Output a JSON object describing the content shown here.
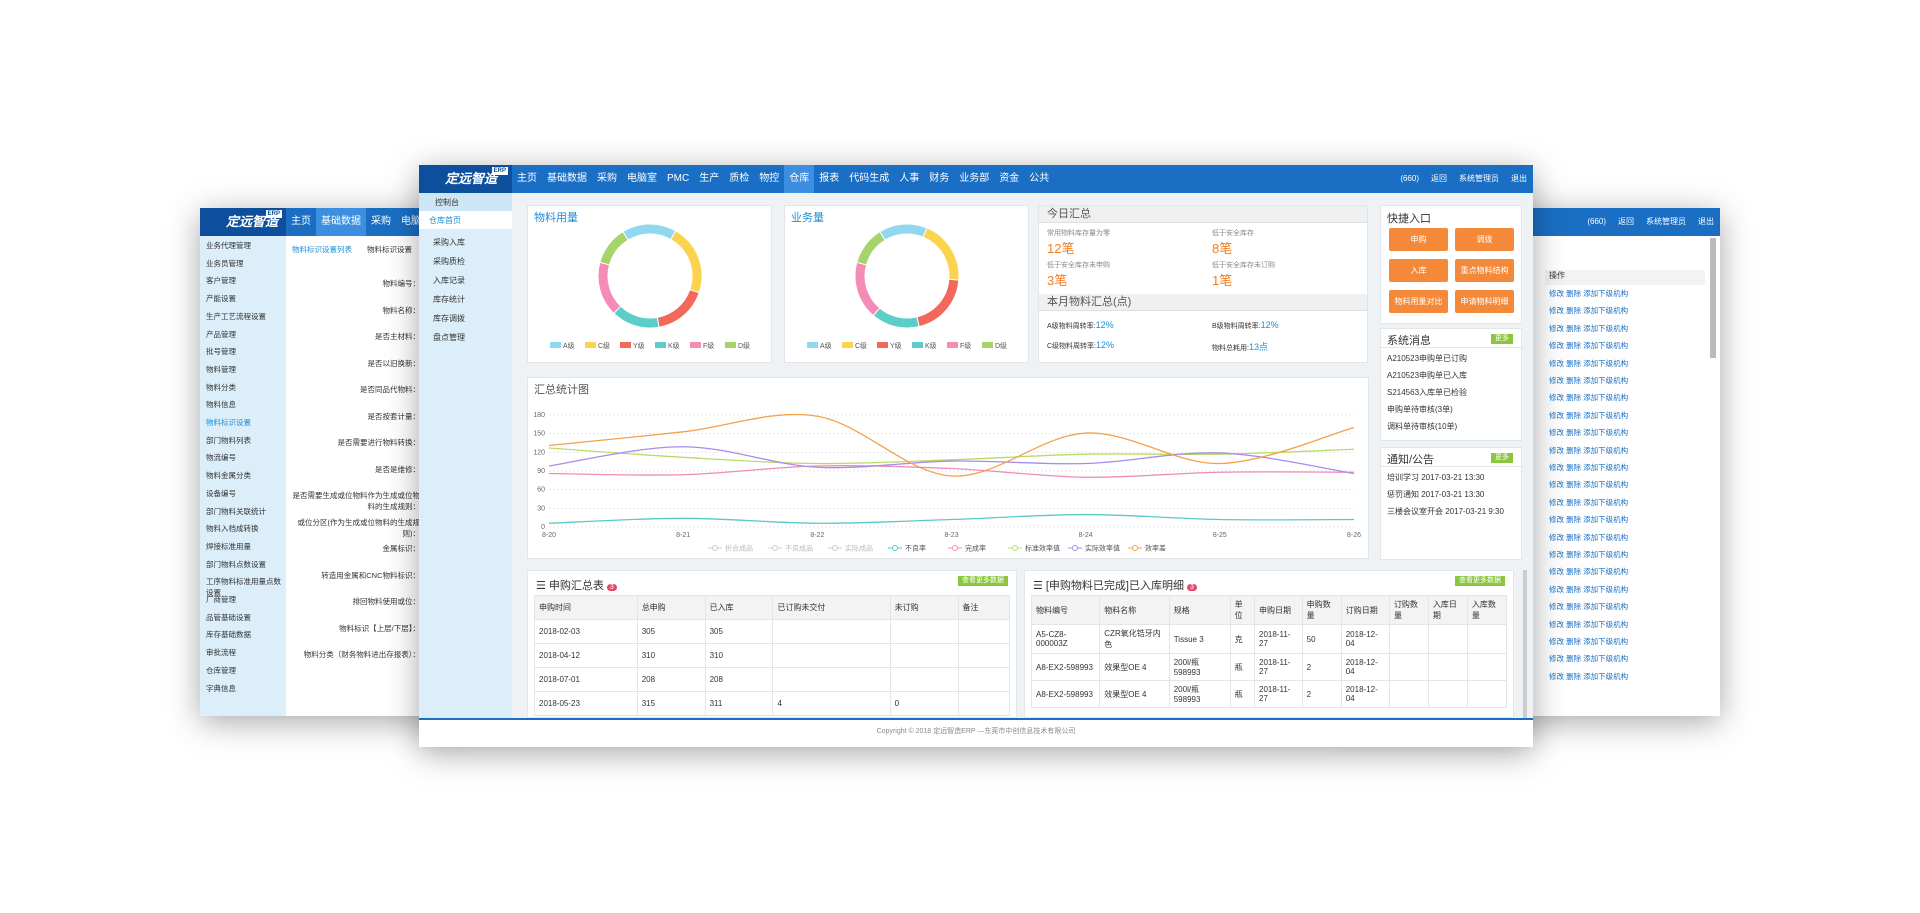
{
  "left_window": {
    "logo": "定远智造",
    "badge": "ERP",
    "nav": [
      "主页",
      "基础数据",
      "采购",
      "电脑"
    ],
    "tabs": [
      "物料标识设置列表",
      "物料标识设置"
    ],
    "menu": [
      "业务代理管理",
      "业务员管理",
      "客户管理",
      "产能设置",
      "生产工艺流程设置",
      "产品管理",
      "批号管理",
      "物料管理",
      "物料分类",
      "物料信息",
      "物料标识设置",
      "部门物料列表",
      "物流编号",
      "物料金属分类",
      "设备编号",
      "部门物料关联统计",
      "物料入档成转换",
      "焊接标准用量",
      "部门物料点数设置",
      "工序物料标准用量点数设置",
      "厂商管理",
      "品管基础设置",
      "库存基础数据",
      "审批流程",
      "仓库管理",
      "字典信息"
    ],
    "form_labels": [
      "物料编号：",
      "物料名称：",
      "是否主材料：",
      "是否以旧换新：",
      "是否同品代物料：",
      "是否按套计量：",
      "是否需要进行物料转换：",
      "是否是维修：",
      "是否需要生成或位物料作为生成或位物料的生成规则：",
      "或位分区(作为生成或位物料的生成规则)：",
      "金属标识：",
      "转造用金属和CNC物料标识：",
      "排回物料使用或位：",
      "物料标识【上层/下层】：",
      "物料分类（财务物料进出存报表）："
    ]
  },
  "main_window": {
    "logo": "定远智造",
    "badge": "ERP",
    "nav": [
      "主页",
      "基础数据",
      "采购",
      "电脑室",
      "PMC",
      "生产",
      "质检",
      "物控",
      "仓库",
      "报表",
      "代码生成",
      "人事",
      "财务",
      "业务部",
      "资金",
      "公共"
    ],
    "user_bar": {
      "count": "(660)",
      "back": "返回",
      "user": "系统管理员",
      "logout": "退出"
    },
    "sidebar": {
      "header": "控制台",
      "active": "仓库首页",
      "items": [
        "采购入库",
        "采购质检",
        "入库记录",
        "库存统计",
        "库存调拨",
        "盘点管理"
      ]
    },
    "usage_chart": {
      "type": "pie",
      "title": "物料用量",
      "labels": [
        "A级",
        "C级",
        "Y级",
        "K级",
        "F级",
        "D级"
      ],
      "values": [
        17,
        22,
        17,
        15,
        17,
        12
      ],
      "colors": [
        "#8fd8ef",
        "#fcd34e",
        "#f2685a",
        "#5ccdc9",
        "#f48cb6",
        "#a6d46a"
      ]
    },
    "business_chart": {
      "type": "pie",
      "title": "业务量",
      "labels": [
        "A级",
        "C级",
        "Y级",
        "K级",
        "F级",
        "D级"
      ],
      "values": [
        15,
        20,
        20,
        15,
        18,
        12
      ],
      "colors": [
        "#8fd8ef",
        "#fcd34e",
        "#f2685a",
        "#5ccdc9",
        "#f48cb6",
        "#a6d46a"
      ]
    },
    "today": {
      "title": "今日汇总",
      "items": [
        {
          "label": "常用物料库存量为零",
          "value": "12笔"
        },
        {
          "label": "低于安全库存",
          "value": "8笔"
        },
        {
          "label": "低于安全库存未申购",
          "value": "3笔"
        },
        {
          "label": "低于安全库存未订购",
          "value": "1笔"
        }
      ],
      "month_title": "本月物料汇总(点)",
      "month_items": [
        {
          "label": "A级物料周转率:",
          "value": "12%"
        },
        {
          "label": "B级物料周转率:",
          "value": "12%"
        },
        {
          "label": "C级物料周转率:",
          "value": "12%"
        },
        {
          "label": "物料总耗用:",
          "value": "13点"
        }
      ]
    },
    "quick": {
      "title": "快捷入口",
      "buttons": [
        "申购",
        "调拨",
        "入库",
        "重点物料结构",
        "物料用量对比",
        "申请物料明细"
      ]
    },
    "messages": {
      "title": "系统消息",
      "more": "更多",
      "items": [
        "A210523申购单已订购",
        "A210523申购单已入库",
        "S214563入库单已检验",
        "申购单待审核(3单)",
        "调料单待审核(10单)"
      ]
    },
    "notices": {
      "title": "通知/公告",
      "more": "更多",
      "items": [
        "培训学习 2017-03-21 13:30",
        "惩罚通知 2017-03-21 13:30",
        "三楼会议室开会 2017-03-21 9:30"
      ]
    },
    "summary_chart": {
      "type": "line",
      "title": "汇总统计图",
      "categories": [
        "8-20",
        "8-21",
        "8-22",
        "8-23",
        "8-24",
        "8-25",
        "8-26"
      ],
      "ylim": [
        0,
        180
      ],
      "yticks": [
        0,
        30,
        60,
        90,
        120,
        150,
        180
      ],
      "grid": true,
      "series": [
        {
          "name": "折合成品",
          "color": "#cccccc",
          "values": [
            null,
            null,
            null,
            null,
            null,
            null,
            null
          ]
        },
        {
          "name": "不良成品",
          "color": "#cccccc",
          "values": [
            null,
            null,
            null,
            null,
            null,
            null,
            null
          ]
        },
        {
          "name": "实际成品",
          "color": "#cccccc",
          "values": [
            null,
            null,
            null,
            null,
            null,
            null,
            null
          ]
        },
        {
          "name": "不良率",
          "color": "#5bc8c8",
          "values": [
            6,
            14,
            6,
            12,
            20,
            12,
            12
          ]
        },
        {
          "name": "完成率",
          "color": "#f08cb8",
          "values": [
            86,
            84,
            98,
            94,
            80,
            88,
            88
          ]
        },
        {
          "name": "标准效率值",
          "color": "#b8dc6c",
          "values": [
            127,
            112,
            102,
            108,
            117,
            117,
            125
          ]
        },
        {
          "name": "实际效率值",
          "color": "#a98ce8",
          "values": [
            98,
            129,
            96,
            106,
            102,
            119,
            86
          ]
        },
        {
          "name": "效率差",
          "color": "#f5a04a",
          "values": [
            131,
            153,
            178,
            82,
            151,
            102,
            160
          ]
        }
      ]
    },
    "table1": {
      "title": "申购汇总表",
      "count": "3",
      "more": "查看更多数据",
      "columns": [
        "申购时间",
        "总申购",
        "已入库",
        "已订购未交付",
        "未订购",
        "备注"
      ],
      "rows": [
        [
          "2018-02-03",
          "305",
          "305"
        ],
        [
          "2018-04-12",
          "310",
          "310"
        ],
        [
          "2018-07-01",
          "208",
          "208"
        ],
        [
          "2018-05-23",
          "315",
          "311",
          "4",
          "0"
        ]
      ]
    },
    "table2": {
      "title": "[申购物料已完成]已入库明细",
      "count": "3",
      "more": "查看更多数据",
      "columns": [
        "物料编号",
        "物料名称",
        "规格",
        "单位",
        "申购日期",
        "申购数量",
        "订购日期",
        "订购数量",
        "入库日期",
        "入库数量"
      ],
      "rows": [
        [
          "A5-CZ8-000003Z",
          "CZR氧化锆牙内色",
          "Tissue 3",
          "克",
          "2018-11-27",
          "50",
          "2018-12-04"
        ],
        [
          "A8-EX2-598993",
          "效果型OE 4",
          "200l/瓶 598993",
          "瓶",
          "2018-11-27",
          "2",
          "2018-12-04"
        ],
        [
          "A8-EX2-598993",
          "效果型OE 4",
          "200l/瓶 598993",
          "瓶",
          "2018-11-27",
          "2",
          "2018-12-04"
        ]
      ]
    },
    "footer": "Copyright © 2018 定远智造ERP —东莞市中创信息技术有限公司"
  },
  "right_window": {
    "user_bar": {
      "count": "(660)",
      "back": "返回",
      "user": "系统管理员",
      "logout": "退出"
    },
    "column": "操作",
    "rows": [
      "修改 删除 添加下级机构",
      "修改 删除 添加下级机构",
      "修改 删除 添加下级机构",
      "修改 删除 添加下级机构",
      "修改 删除 添加下级机构",
      "修改 删除 添加下级机构",
      "修改 删除 添加下级机构",
      "修改 删除 添加下级机构",
      "修改 删除 添加下级机构",
      "修改 删除 添加下级机构",
      "修改 删除 添加下级机构",
      "修改 删除 添加下级机构",
      "修改 删除 添加下级机构",
      "修改 删除 添加下级机构",
      "修改 删除 添加下级机构",
      "修改 删除 添加下级机构",
      "修改 删除 添加下级机构",
      "修改 删除 添加下级机构",
      "修改 删除 添加下级机构",
      "修改 删除 添加下级机构",
      "修改 删除 添加下级机构",
      "修改 删除 添加下级机构",
      "修改 删除 添加下级机构"
    ]
  }
}
